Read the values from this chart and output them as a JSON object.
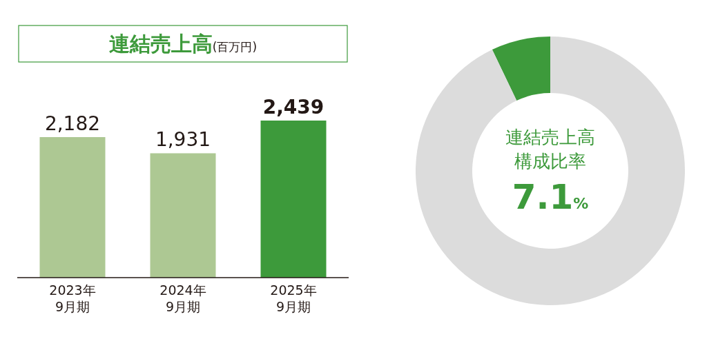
{
  "chart_data": [
    {
      "type": "bar",
      "title": "連結売上高",
      "subtitle": "(百万円)",
      "categories": [
        "2023年\n9月期",
        "2024年\n9月期",
        "2025年\n9月期"
      ],
      "values": [
        2182,
        1931,
        2439
      ],
      "colors": [
        "#adc893",
        "#adc893",
        "#3d9a3b"
      ],
      "value_labels": [
        "2,182",
        "1,931",
        "**2,439**"
      ]
    },
    {
      "type": "donut",
      "title": "連結売上高",
      "subtitle": "構成比率",
      "categories": [
        null,
        null
      ],
      "values": [
        7.1,
        92.9
      ],
      "colors": [
        "#3d9a3b",
        "#dcdcdc"
      ],
      "annotations": [
        "7.1%"
      ]
    }
  ]
}
